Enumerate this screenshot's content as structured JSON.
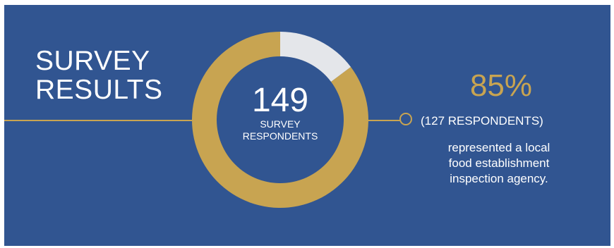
{
  "title": {
    "line1": "SURVEY",
    "line2": "RESULTS"
  },
  "center": {
    "number": "149",
    "label_line1": "SURVEY",
    "label_line2": "RESPONDENTS"
  },
  "highlight": {
    "percent": "85%",
    "respondents": "(127 RESPONDENTS)",
    "desc_line1": "represented a local",
    "desc_line2": "food establishment",
    "desc_line3": "inspection agency."
  },
  "colors": {
    "background": "#315591",
    "accent": "#c8a451",
    "remainder": "#e4e6ea",
    "text": "#ffffff"
  },
  "chart_data": {
    "type": "pie",
    "title": "",
    "total": 149,
    "slices": [
      {
        "value": 127,
        "percent": 85,
        "color": "#c8a451"
      },
      {
        "value": 22,
        "percent": 15,
        "color": "#e4e6ea"
      }
    ]
  }
}
